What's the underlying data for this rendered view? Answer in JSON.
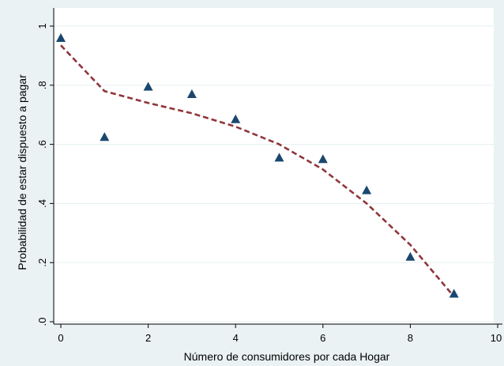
{
  "chart_data": {
    "type": "scatter",
    "xlabel": "Número de consumidores por cada Hogar",
    "ylabel": "Probabilidad de estar dispuesto a pagar",
    "xlim": [
      0,
      10
    ],
    "ylim": [
      0,
      1
    ],
    "x_ticks": [
      "0",
      "2",
      "4",
      "6",
      "8",
      "10"
    ],
    "y_ticks": [
      ".0",
      ".2",
      ".4",
      ".6",
      ".8",
      "1"
    ],
    "grid": true,
    "colors": {
      "background": "#eaf2f3",
      "plot_area": "#ffffff",
      "grid": "#eaf2f3",
      "points": "#1a476f",
      "fit_line": "#90353b"
    },
    "series": [
      {
        "type": "scatter",
        "marker": "triangle",
        "x": [
          0,
          1,
          2,
          3,
          4,
          5,
          6,
          7,
          8,
          9
        ],
        "y": [
          0.96,
          0.625,
          0.795,
          0.77,
          0.685,
          0.555,
          0.55,
          0.445,
          0.22,
          0.095
        ]
      },
      {
        "type": "line",
        "style": "dashed",
        "x": [
          0,
          1,
          2,
          3,
          4,
          5,
          6,
          7,
          8,
          9
        ],
        "y": [
          0.935,
          0.78,
          0.74,
          0.705,
          0.66,
          0.6,
          0.515,
          0.4,
          0.26,
          0.085
        ]
      }
    ]
  }
}
